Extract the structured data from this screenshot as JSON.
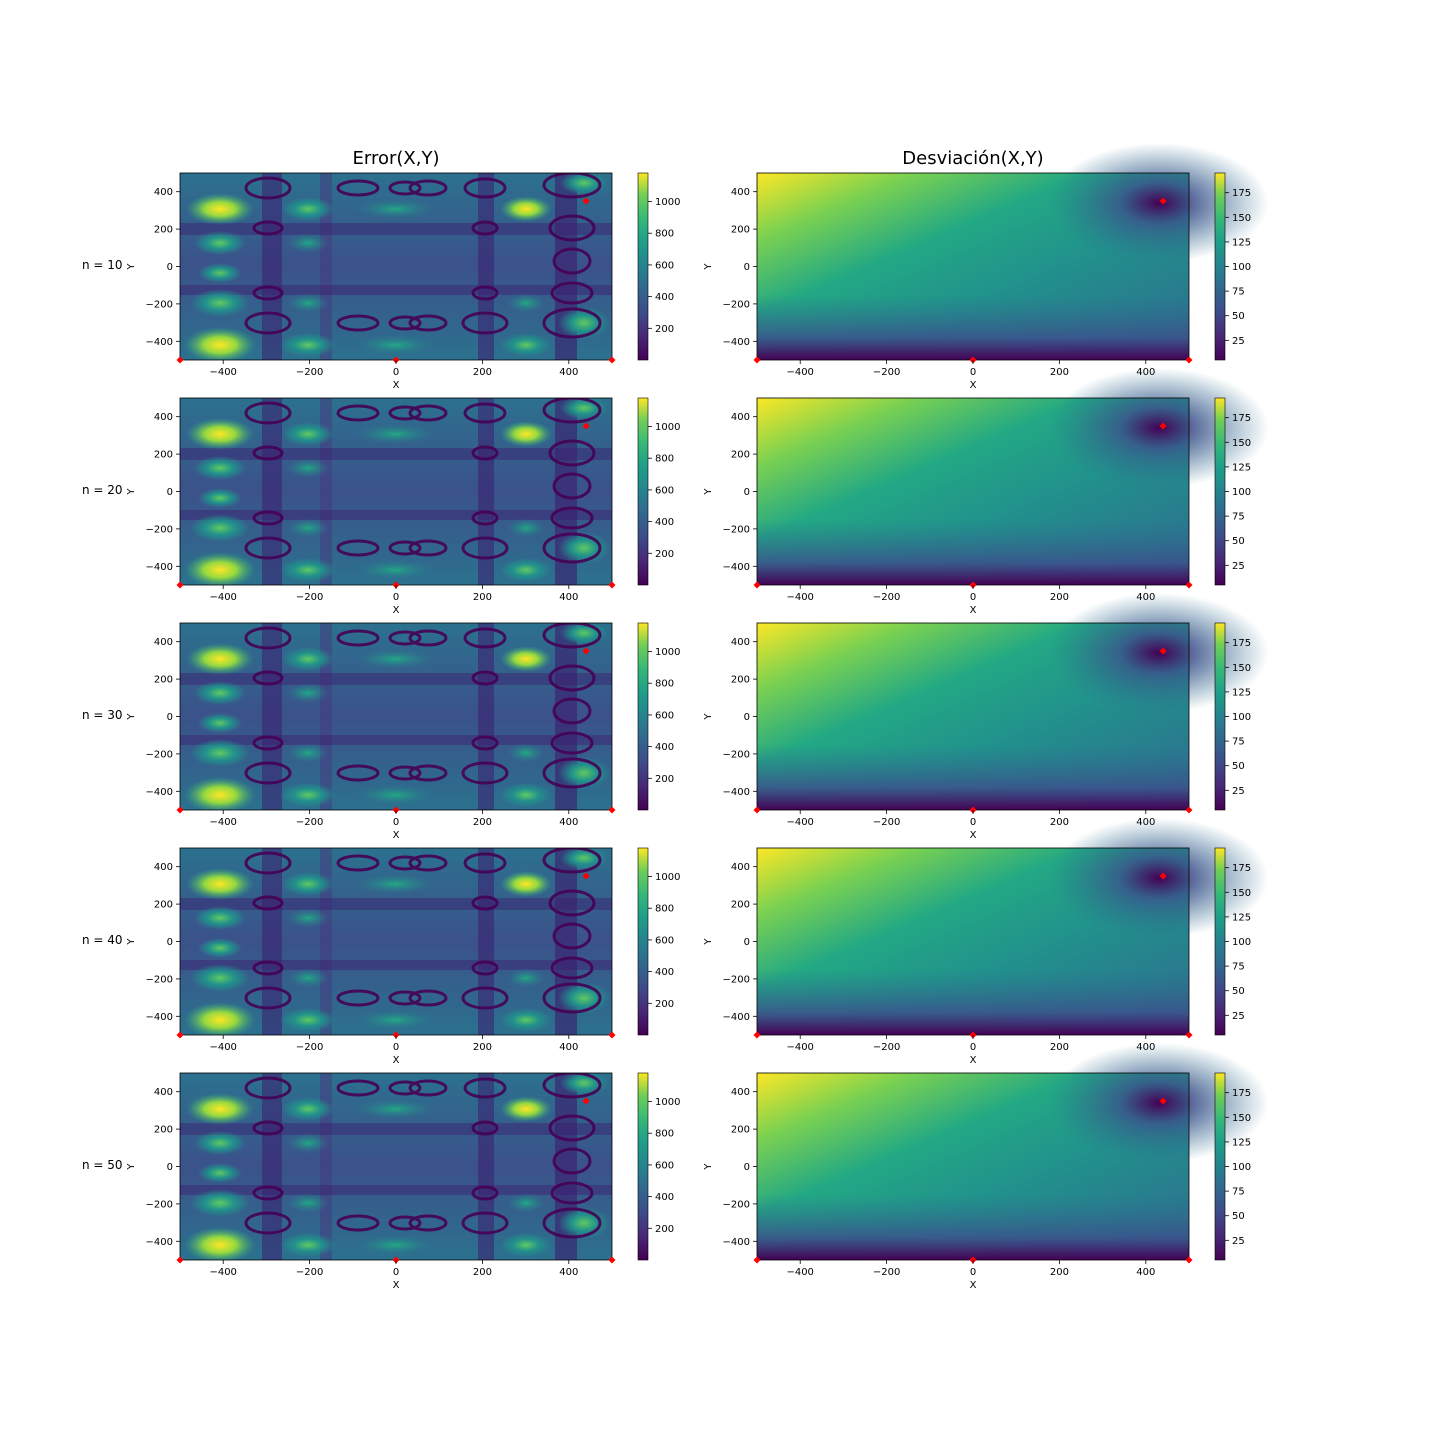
{
  "figure": {
    "row_labels": [
      "n = 10",
      "n = 20",
      "n = 30",
      "n = 40",
      "n = 50"
    ]
  },
  "chart_data": [
    {
      "type": "heatmap",
      "title": "Error(X,Y)",
      "xlabel": "X",
      "ylabel": "Y",
      "xlim": [
        -500,
        500
      ],
      "ylim": [
        -500,
        500
      ],
      "xticks": [
        -400,
        -200,
        0,
        200,
        400
      ],
      "yticks": [
        -400,
        -200,
        0,
        200,
        400
      ],
      "colormap": "viridis",
      "colorbar": {
        "range": [
          0,
          1180
        ],
        "ticks": [
          200,
          400,
          600,
          800,
          1000
        ]
      },
      "markers": [
        {
          "x": 440,
          "y": 350,
          "color": "#ff0000"
        },
        {
          "x": -500,
          "y": -500,
          "color": "#ff0000"
        },
        {
          "x": 0,
          "y": -500,
          "color": "#ff0000"
        },
        {
          "x": 500,
          "y": -500,
          "color": "#ff0000"
        }
      ],
      "panels": [
        "n = 10",
        "n = 20",
        "n = 30",
        "n = 40",
        "n = 50"
      ]
    },
    {
      "type": "heatmap",
      "title": "Desviación(X,Y)",
      "xlabel": "X",
      "ylabel": "Y",
      "xlim": [
        -500,
        500
      ],
      "ylim": [
        -500,
        500
      ],
      "xticks": [
        -400,
        -200,
        0,
        200,
        400
      ],
      "yticks": [
        -400,
        -200,
        0,
        200,
        400
      ],
      "colormap": "viridis",
      "colorbar": {
        "range": [
          5,
          195
        ],
        "ticks": [
          25,
          50,
          75,
          100,
          125,
          150,
          175
        ]
      },
      "markers": [
        {
          "x": 440,
          "y": 350,
          "color": "#ff0000"
        },
        {
          "x": -500,
          "y": -500,
          "color": "#ff0000"
        },
        {
          "x": 0,
          "y": -500,
          "color": "#ff0000"
        },
        {
          "x": 500,
          "y": -500,
          "color": "#ff0000"
        }
      ],
      "panels": [
        "n = 10",
        "n = 20",
        "n = 30",
        "n = 40",
        "n = 50"
      ]
    }
  ]
}
